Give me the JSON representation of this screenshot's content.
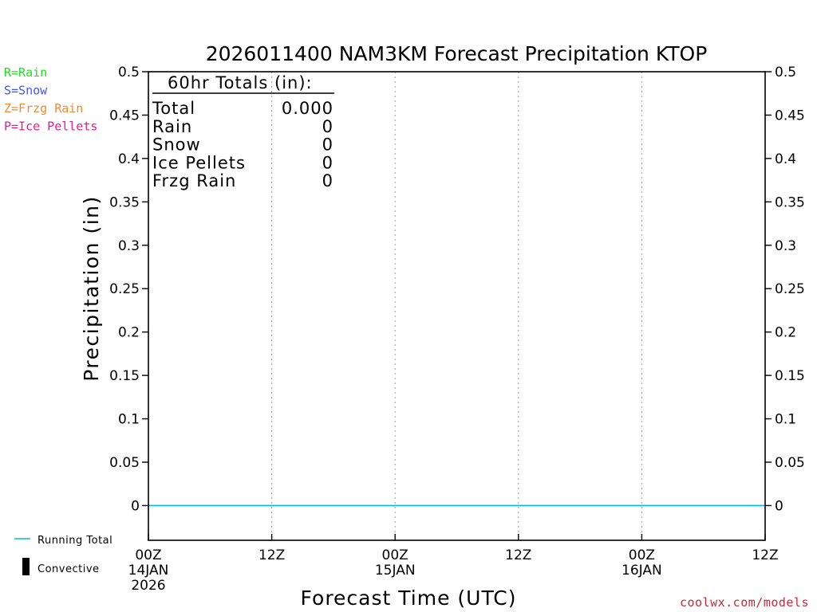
{
  "chart_data": {
    "type": "line",
    "title": "2026011400 NAM3KM Forecast Precipitation KTOP",
    "xlabel": "Forecast Time (UTC)",
    "ylabel": "Precipitation (in)",
    "ylim": [
      -0.04,
      0.5
    ],
    "xlim_hours": [
      0,
      60
    ],
    "y_ticks": [
      0,
      0.05,
      0.1,
      0.15,
      0.2,
      0.25,
      0.3,
      0.35,
      0.4,
      0.45,
      0.5
    ],
    "y_tick_labels": [
      "0",
      "0.05",
      "0.1",
      "0.15",
      "0.2",
      "0.25",
      "0.3",
      "0.35",
      "0.4",
      "0.45",
      "0.5"
    ],
    "x_ticks": [
      {
        "hour": 0,
        "label": "00Z",
        "date": "14JAN",
        "year": "2026"
      },
      {
        "hour": 12,
        "label": "12Z",
        "date": "",
        "year": ""
      },
      {
        "hour": 24,
        "label": "00Z",
        "date": "15JAN",
        "year": ""
      },
      {
        "hour": 36,
        "label": "12Z",
        "date": "",
        "year": ""
      },
      {
        "hour": 48,
        "label": "00Z",
        "date": "16JAN",
        "year": ""
      },
      {
        "hour": 60,
        "label": "12Z",
        "date": "",
        "year": ""
      }
    ],
    "series": [
      {
        "name": "Running Total",
        "color": "#00bcd4",
        "x": [
          0,
          6,
          12,
          18,
          24,
          30,
          36,
          42,
          48,
          54,
          60
        ],
        "values": [
          0,
          0,
          0,
          0,
          0,
          0,
          0,
          0,
          0,
          0,
          0
        ]
      },
      {
        "name": "Convective",
        "color": "#000000",
        "x": [],
        "values": []
      }
    ],
    "totals": {
      "header": "60hr Totals (in):",
      "rows": [
        {
          "label": "Total",
          "value": "0.000"
        },
        {
          "label": "Rain",
          "value": "0"
        },
        {
          "label": "Snow",
          "value": "0"
        },
        {
          "label": "Ice Pellets",
          "value": "0"
        },
        {
          "label": "Frzg Rain",
          "value": "0"
        }
      ]
    },
    "ptype_legend": [
      {
        "label": "R=Rain",
        "color": "#22dd22"
      },
      {
        "label": "S=Snow",
        "color": "#4455ee"
      },
      {
        "label": "Z=Frzg Rain",
        "color": "#f08a30"
      },
      {
        "label": "P=Ice Pellets",
        "color": "#e0208a"
      }
    ],
    "legend": [
      {
        "label": "Running Total",
        "color": "#00bcd4"
      },
      {
        "label": "Convective",
        "color": "#000000"
      }
    ],
    "credit": "coolwx.com/models"
  }
}
